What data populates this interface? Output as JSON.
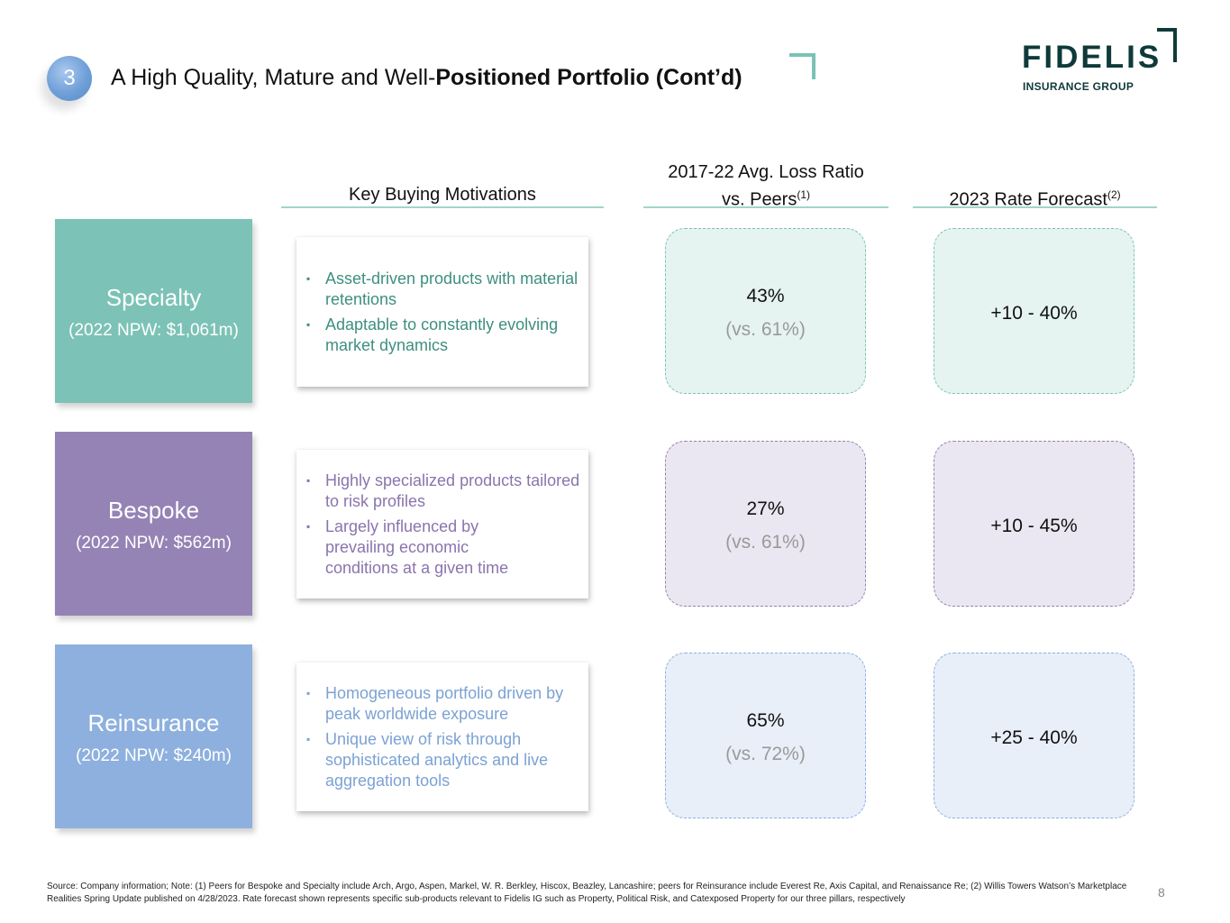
{
  "header": {
    "section_number": "3",
    "title_plain": "A High Quality, Mature and Well-",
    "title_bold": "Positioned Portfolio (Cont’d)",
    "logo_name": "FIDELIS",
    "logo_subtitle": "INSURANCE GROUP"
  },
  "columns": {
    "motivations": "Key Buying Motivations",
    "loss_ratio_line1": "2017-22 Avg. Loss Ratio",
    "loss_ratio_line2": "vs. Peers",
    "loss_ratio_note": "(1)",
    "rate_forecast": "2023 Rate Forecast",
    "rate_forecast_note": "(2)"
  },
  "colors": {
    "specialty": "#7cc2b6",
    "bespoke": "#9583b5",
    "reinsurance": "#8eb0de",
    "specialty_text": "#3e8f7f",
    "bespoke_text": "#8a74ad",
    "reinsurance_text": "#7ba2d4"
  },
  "segments": [
    {
      "name": "Specialty",
      "npw": "(2022 NPW: $1,061m)",
      "bullet_glyph": "▪",
      "motivations": [
        "Asset-driven products with material retentions",
        "Adaptable to constantly evolving market dynamics"
      ],
      "loss_ratio": "43%",
      "peer_loss_ratio": "(vs. 61%)",
      "rate_forecast": "+10 - 40%"
    },
    {
      "name": "Bespoke",
      "npw": "(2022 NPW: $562m)",
      "bullet_glyph": "▪",
      "motivations": [
        "Highly specialized products tailored to risk profiles",
        "Largely influenced by prevailing economic conditions at a given time"
      ],
      "loss_ratio": "27%",
      "peer_loss_ratio": "(vs. 61%)",
      "rate_forecast": "+10 - 45%"
    },
    {
      "name": "Reinsurance",
      "npw": "(2022 NPW: $240m)",
      "bullet_glyph": "▪",
      "motivations": [
        "Homogeneous portfolio driven by peak worldwide exposure",
        "Unique view of risk through sophisticated analytics and live aggregation tools"
      ],
      "loss_ratio": "65%",
      "peer_loss_ratio": "(vs. 72%)",
      "rate_forecast": "+25 - 40%"
    }
  ],
  "footnote": "Source: Company information; Note: (1) Peers for Bespoke and Specialty include Arch, Argo, Aspen, Markel, W. R. Berkley, Hiscox, Beazley, Lancashire; peers for Reinsurance include Everest Re, Axis Capital, and Renaissance Re; (2) Willis Towers Watson’s Marketplace Realities Spring Update published on 4/28/2023. Rate forecast shown represents specific sub-products relevant to Fidelis IG such as Property, Political Risk, and Catexposed Property for our three pillars, respectively",
  "page_number": "8"
}
